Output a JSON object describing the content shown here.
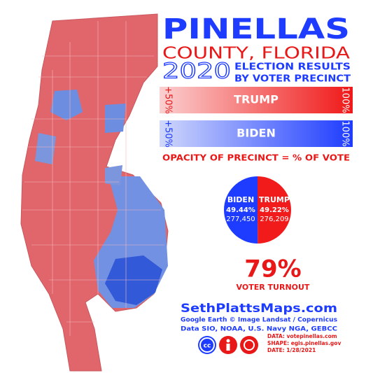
{
  "header": {
    "title": "PINELLAS",
    "subtitle": "COUNTY, FLORIDA",
    "year": "2020",
    "line1": "ELECTION RESULTS",
    "line2": "BY VOTER PRECINCT"
  },
  "legend": {
    "trump": {
      "name": "TRUMP",
      "low": "+50%",
      "high": "100%"
    },
    "biden": {
      "name": "BIDEN",
      "low": "+50%",
      "high": "100%"
    },
    "note": "OPACITY OF PRECINCT = % OF VOTE"
  },
  "results": {
    "candidates": [
      {
        "name": "BIDEN",
        "color": "#1e3cff",
        "share": 49.44,
        "share_label": "49.44%",
        "votes": "277,450"
      },
      {
        "name": "TRUMP",
        "color": "#f21b1b",
        "share": 49.22,
        "share_label": "49.22%",
        "votes": "276,209"
      }
    ],
    "turnout": "79%",
    "turnout_label": "VOTER TURNOUT"
  },
  "credits": {
    "site": "SethPlattsMaps.com",
    "imagery": "Google Earth © Image Landsat / Copernicus",
    "data_sources": "Data SIO, NOAA, U.S. Navy NGA, GEBCC",
    "data": "DATA: votepinellas.com",
    "shape": "SHAPE: egis.pinellas.gov",
    "date": "DATE: 1/28/2021"
  }
}
